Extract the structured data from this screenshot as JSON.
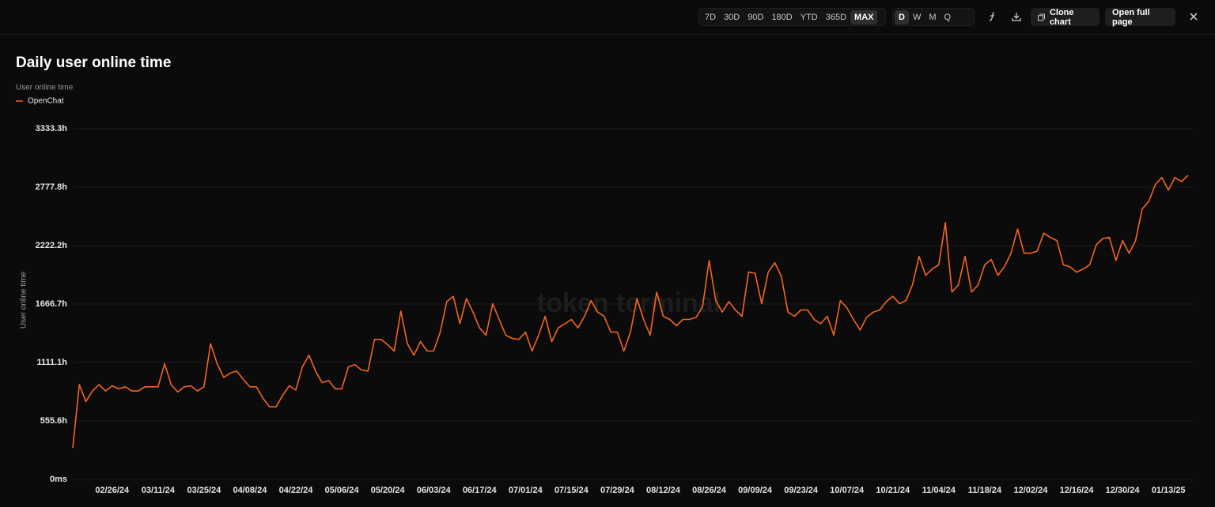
{
  "toolbar": {
    "ranges": [
      "7D",
      "30D",
      "90D",
      "180D",
      "YTD",
      "365D",
      "MAX"
    ],
    "selected_range": "MAX",
    "intervals": [
      "D",
      "W",
      "M",
      "Q"
    ],
    "selected_interval": "D",
    "clone": "Clone chart",
    "open": "Open full page"
  },
  "chart_data": {
    "type": "line",
    "title": "Daily user online time",
    "legend_title": "User online time",
    "y_label": "User online time",
    "watermark": "token terminal",
    "grid": true,
    "x": [
      "02/14/24",
      "02/16/24",
      "02/18/24",
      "02/20/24",
      "02/22/24",
      "02/24/24",
      "02/26/24",
      "02/28/24",
      "03/01/24",
      "03/03/24",
      "03/05/24",
      "03/07/24",
      "03/09/24",
      "03/11/24",
      "03/13/24",
      "03/15/24",
      "03/17/24",
      "03/19/24",
      "03/21/24",
      "03/23/24",
      "03/25/24",
      "03/27/24",
      "03/29/24",
      "03/31/24",
      "04/02/24",
      "04/04/24",
      "04/06/24",
      "04/08/24",
      "04/10/24",
      "04/12/24",
      "04/14/24",
      "04/16/24",
      "04/18/24",
      "04/20/24",
      "04/22/24",
      "04/24/24",
      "04/26/24",
      "04/28/24",
      "04/30/24",
      "05/02/24",
      "05/04/24",
      "05/06/24",
      "05/08/24",
      "05/10/24",
      "05/12/24",
      "05/14/24",
      "05/16/24",
      "05/18/24",
      "05/20/24",
      "05/22/24",
      "05/24/24",
      "05/26/24",
      "05/28/24",
      "05/30/24",
      "06/01/24",
      "06/03/24",
      "06/05/24",
      "06/07/24",
      "06/09/24",
      "06/11/24",
      "06/13/24",
      "06/15/24",
      "06/17/24",
      "06/19/24",
      "06/21/24",
      "06/23/24",
      "06/25/24",
      "06/27/24",
      "06/29/24",
      "07/01/24",
      "07/03/24",
      "07/05/24",
      "07/07/24",
      "07/09/24",
      "07/11/24",
      "07/13/24",
      "07/15/24",
      "07/17/24",
      "07/19/24",
      "07/21/24",
      "07/23/24",
      "07/25/24",
      "07/27/24",
      "07/29/24",
      "07/31/24",
      "08/02/24",
      "08/04/24",
      "08/06/24",
      "08/08/24",
      "08/10/24",
      "08/12/24",
      "08/14/24",
      "08/16/24",
      "08/18/24",
      "08/20/24",
      "08/22/24",
      "08/24/24",
      "08/26/24",
      "08/28/24",
      "08/30/24",
      "09/01/24",
      "09/03/24",
      "09/05/24",
      "09/07/24",
      "09/09/24",
      "09/11/24",
      "09/13/24",
      "09/15/24",
      "09/17/24",
      "09/19/24",
      "09/21/24",
      "09/23/24",
      "09/25/24",
      "09/27/24",
      "09/29/24",
      "10/01/24",
      "10/03/24",
      "10/05/24",
      "10/07/24",
      "10/09/24",
      "10/11/24",
      "10/13/24",
      "10/15/24",
      "10/17/24",
      "10/19/24",
      "10/21/24",
      "10/23/24",
      "10/25/24",
      "10/27/24",
      "10/29/24",
      "10/31/24",
      "11/02/24",
      "11/04/24",
      "11/06/24",
      "11/08/24",
      "11/10/24",
      "11/12/24",
      "11/14/24",
      "11/16/24",
      "11/18/24",
      "11/20/24",
      "11/22/24",
      "11/24/24",
      "11/26/24",
      "11/28/24",
      "11/30/24",
      "12/02/24",
      "12/04/24",
      "12/06/24",
      "12/08/24",
      "12/10/24",
      "12/12/24",
      "12/14/24",
      "12/16/24",
      "12/18/24",
      "12/20/24",
      "12/22/24",
      "12/24/24",
      "12/26/24",
      "12/28/24",
      "12/30/24",
      "01/01/25",
      "01/03/25",
      "01/05/25",
      "01/07/25",
      "01/09/25",
      "01/11/25",
      "01/13/25",
      "01/15/25",
      "01/17/25",
      "01/19/25"
    ],
    "series": [
      {
        "name": "OpenChat",
        "color": "#f26522",
        "values": [
          300,
          900,
          740,
          840,
          900,
          840,
          890,
          860,
          880,
          840,
          840,
          880,
          880,
          880,
          1100,
          900,
          830,
          880,
          890,
          840,
          880,
          1290,
          1100,
          970,
          1010,
          1030,
          950,
          880,
          880,
          770,
          690,
          690,
          800,
          890,
          850,
          1070,
          1180,
          1030,
          920,
          940,
          860,
          860,
          1070,
          1090,
          1040,
          1030,
          1330,
          1330,
          1280,
          1220,
          1600,
          1290,
          1180,
          1310,
          1220,
          1220,
          1400,
          1690,
          1740,
          1480,
          1720,
          1590,
          1440,
          1370,
          1670,
          1520,
          1370,
          1340,
          1330,
          1400,
          1220,
          1370,
          1550,
          1310,
          1440,
          1480,
          1520,
          1440,
          1550,
          1700,
          1590,
          1550,
          1400,
          1400,
          1220,
          1400,
          1720,
          1520,
          1370,
          1780,
          1550,
          1520,
          1460,
          1520,
          1520,
          1540,
          1640,
          2080,
          1700,
          1590,
          1690,
          1610,
          1550,
          1970,
          1960,
          1670,
          1970,
          2060,
          1930,
          1590,
          1550,
          1610,
          1610,
          1520,
          1480,
          1550,
          1370,
          1700,
          1630,
          1520,
          1420,
          1540,
          1590,
          1610,
          1690,
          1740,
          1670,
          1700,
          1850,
          2120,
          1940,
          2000,
          2040,
          2440,
          1780,
          1850,
          2120,
          1780,
          1850,
          2040,
          2090,
          1940,
          2020,
          2150,
          2380,
          2150,
          2150,
          2170,
          2340,
          2300,
          2270,
          2040,
          2020,
          1970,
          2000,
          2040,
          2230,
          2290,
          2300,
          2080,
          2270,
          2150,
          2270,
          2570,
          2640,
          2800,
          2870,
          2750,
          2870,
          2830,
          2890
        ]
      }
    ],
    "xticks": [
      "02/26/24",
      "03/11/24",
      "03/25/24",
      "04/08/24",
      "04/22/24",
      "05/06/24",
      "05/20/24",
      "06/03/24",
      "06/17/24",
      "07/01/24",
      "07/15/24",
      "07/29/24",
      "08/12/24",
      "08/26/24",
      "09/09/24",
      "09/23/24",
      "10/07/24",
      "10/21/24",
      "11/04/24",
      "11/18/24",
      "12/02/24",
      "12/16/24",
      "12/30/24",
      "01/13/25"
    ],
    "ylim": [
      0,
      3333.3
    ],
    "yticks": [
      {
        "value": 0,
        "label": "0ms"
      },
      {
        "value": 555.6,
        "label": "555.6h"
      },
      {
        "value": 1111.1,
        "label": "1111.1h"
      },
      {
        "value": 1666.7,
        "label": "1666.7h"
      },
      {
        "value": 2222.2,
        "label": "2222.2h"
      },
      {
        "value": 2777.8,
        "label": "2777.8h"
      },
      {
        "value": 3333.3,
        "label": "3333.3h"
      }
    ]
  }
}
